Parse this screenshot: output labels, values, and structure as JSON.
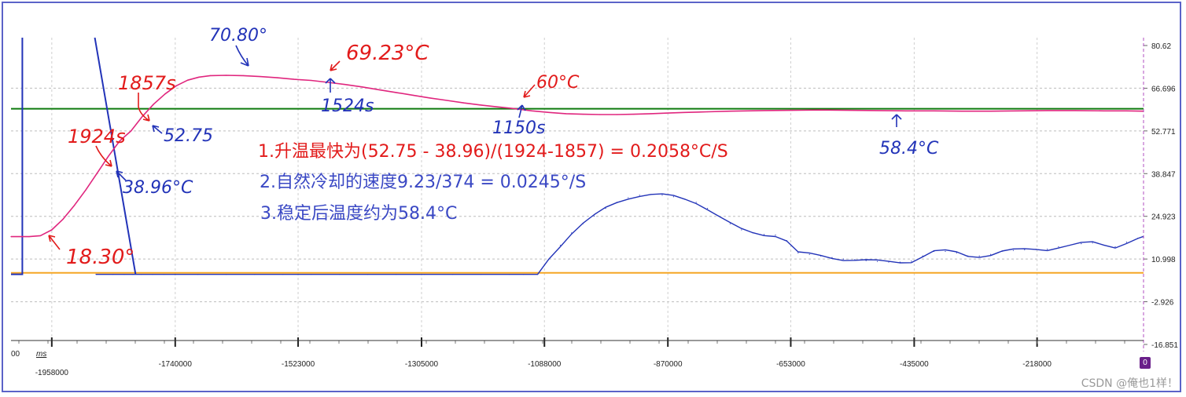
{
  "chart_data": {
    "type": "line",
    "y_tick_labels": [
      "80.62",
      "66.696",
      "52.771",
      "38.847",
      "24.923",
      "10.998",
      "-2.926",
      "-16.851"
    ],
    "x_tick_labels": [
      "-1958000",
      "-1740000",
      "-1523000",
      "-1305000",
      "-1088000",
      "-870000",
      "-653000",
      "-435000",
      "-218000"
    ],
    "x_corner_label": "00",
    "x_unit_label": "ms",
    "ylim": [
      -16.851,
      80.62
    ],
    "xlim": [
      -2030000,
      -30000
    ],
    "grid": true,
    "colors": {
      "pink_series": "#e0267e",
      "blue_series": "#2233b8",
      "green_line": "#0d7a0d",
      "orange_line": "#f5a623",
      "note_red": "#e21b1b",
      "note_blue": "#3a48c4"
    },
    "series": [
      {
        "color": "#e0267e",
        "x": [
          -2030000,
          -1998000,
          -1978000,
          -1958000,
          -1938000,
          -1918000,
          -1898000,
          -1878000,
          -1858000,
          -1838000,
          -1818000,
          -1798000,
          -1778000,
          -1758000,
          -1738000,
          -1718000,
          -1698000,
          -1678000,
          -1650000,
          -1620000,
          -1590000,
          -1560000,
          -1530000,
          -1500000,
          -1470000,
          -1440000,
          -1410000,
          -1380000,
          -1350000,
          -1320000,
          -1290000,
          -1260000,
          -1230000,
          -1200000,
          -1170000,
          -1140000,
          -1110000,
          -1080000,
          -1050000,
          -1020000,
          -990000,
          -960000,
          -930000,
          -900000,
          -870000,
          -840000,
          -800000,
          -760000,
          -700000,
          -650000,
          -600000,
          -550000,
          -500000,
          -450000,
          -400000,
          -350000,
          -300000,
          -250000,
          -200000,
          -150000,
          -100000,
          -60000,
          -30000
        ],
        "y": [
          18.3,
          18.3,
          18.6,
          20.5,
          24.0,
          28.5,
          33.5,
          38.96,
          44.5,
          49.5,
          52.75,
          57.5,
          61.5,
          64.8,
          67.5,
          69.3,
          70.3,
          70.8,
          70.9,
          70.8,
          70.5,
          70.1,
          69.6,
          69.23,
          68.6,
          67.9,
          67.1,
          66.2,
          65.3,
          64.4,
          63.5,
          62.7,
          61.9,
          61.2,
          60.6,
          60.0,
          59.3,
          58.8,
          58.4,
          58.2,
          58.1,
          58.1,
          58.2,
          58.4,
          58.6,
          58.8,
          59.0,
          59.2,
          59.4,
          59.5,
          59.6,
          59.5,
          59.4,
          59.3,
          59.3,
          59.2,
          59.2,
          59.3,
          59.4,
          59.4,
          59.3,
          59.3,
          59.2
        ]
      },
      {
        "color": "#2233b8",
        "x": [
          -1880000,
          -1850000,
          -1830000,
          -1815000,
          -1800000,
          -1780000,
          -1760000,
          -1740000,
          -1700000,
          -1650000,
          -1600000,
          -1550000,
          -1500000,
          -1450000,
          -1400000,
          -1350000,
          -1300000,
          -1250000,
          -1200000,
          -1150000,
          -1125000,
          -1100000,
          -1080000,
          -1060000,
          -1040000,
          -1020000,
          -1000000,
          -980000,
          -960000,
          -940000,
          -920000,
          -900000,
          -880000,
          -860000,
          -840000,
          -820000,
          -800000,
          -780000,
          -760000,
          -740000,
          -720000,
          -700000,
          -680000,
          -660000,
          -640000,
          -620000,
          -600000,
          -580000,
          -560000,
          -540000,
          -520000,
          -500000,
          -480000,
          -460000,
          -440000,
          -420000,
          -400000,
          -380000,
          -360000,
          -340000,
          -320000,
          -300000,
          -280000,
          -260000,
          -240000,
          -220000,
          -200000,
          -180000,
          -160000,
          -140000,
          -120000,
          -100000,
          -80000,
          -60000,
          -40000,
          -30000
        ],
        "y": [
          6.0,
          6.0,
          6.0,
          6.0,
          6.0,
          6.0,
          6.0,
          6.0,
          6.0,
          6.0,
          6.0,
          6.0,
          6.0,
          6.0,
          6.0,
          6.0,
          6.0,
          6.0,
          6.0,
          6.0,
          6.0,
          6.0,
          11.0,
          15.5,
          19.5,
          22.5,
          25.0,
          27.5,
          29.5,
          31.0,
          31.8,
          32.0,
          31.8,
          31.3,
          30.5,
          29.5,
          27.5,
          25.0,
          22.5,
          20.5,
          19.5,
          19.0,
          18.8,
          17.0,
          13.0,
          12.5,
          12.0,
          11.5,
          11.0,
          10.8,
          10.5,
          10.2,
          10.0,
          10.0,
          10.3,
          12.0,
          13.5,
          13.5,
          13.0,
          12.0,
          12.0,
          12.5,
          13.5,
          13.8,
          14.0,
          14.2,
          14.2,
          15.0,
          15.5,
          16.0,
          16.2,
          15.5,
          15.0,
          16.5,
          17.8,
          18.0
        ]
      }
    ],
    "blue_vertical_left": {
      "x": -2010000,
      "y_top": 80.62,
      "y_bottom": 6.0
    },
    "blue_descent": {
      "x": [
        -1882000,
        -1810000
      ],
      "y": [
        80.62,
        6.0
      ]
    },
    "hlines": [
      {
        "color": "#0d7a0d",
        "y": 60.0
      },
      {
        "color": "#f5a623",
        "y": 6.5
      }
    ],
    "notes": [
      {
        "text": "1.升温最快为(52.75 - 38.96)/(1924-1857) = 0.2058°C/S",
        "color": "#e21b1b"
      },
      {
        "text": "2.自然冷却的速度9.23/374 = 0.0245°/S",
        "color": "#3a48c4"
      },
      {
        "text": "3.稳定后温度约为58.4°C",
        "color": "#3a48c4"
      }
    ],
    "annotations": [
      {
        "text": "70.80°",
        "color": "#2233b8"
      },
      {
        "text": "69.23°C",
        "color": "#e21b1b"
      },
      {
        "text": "1857s",
        "color": "#e21b1b"
      },
      {
        "text": "1524s",
        "color": "#2233b8"
      },
      {
        "text": "60°C",
        "color": "#e21b1b"
      },
      {
        "text": "1924s",
        "color": "#e21b1b"
      },
      {
        "text": "52.75",
        "color": "#2233b8"
      },
      {
        "text": "1150s",
        "color": "#2233b8"
      },
      {
        "text": "58.4°C",
        "color": "#2233b8"
      },
      {
        "text": "38.96°C",
        "color": "#2233b8"
      },
      {
        "text": "18.30°",
        "color": "#e21b1b"
      }
    ],
    "badge": "0",
    "watermark": "CSDN @俺也1样！"
  }
}
